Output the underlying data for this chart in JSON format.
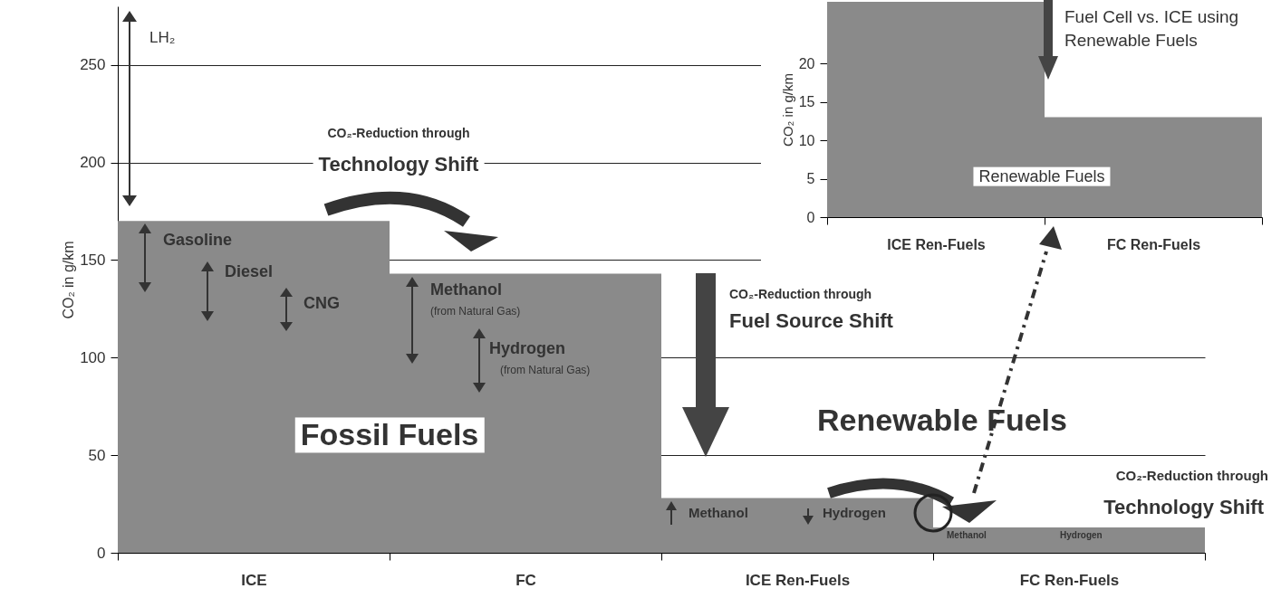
{
  "chart_data": [
    {
      "type": "bar",
      "categories": [
        "ICE",
        "FC",
        "ICE Ren-Fuels",
        "FC Ren-Fuels"
      ],
      "values": [
        170,
        143,
        28,
        13
      ],
      "color": "#8a8a8a",
      "ylabel": "CO₂ in g/km",
      "ylim": [
        0,
        280
      ],
      "yticks": [
        0,
        50,
        100,
        150,
        200,
        250
      ],
      "grid": "y",
      "annotations": [
        "LH₂",
        "Gasoline",
        "Diesel",
        "CNG",
        "Methanol",
        "(from Natural Gas)",
        "Hydrogen",
        "(from Natural Gas)",
        "CO₂-Reduction through",
        "Technology Shift",
        "CO₂-Reduction through",
        "Fuel Source Shift",
        "Fossil Fuels",
        "Renewable Fuels",
        "CO₂-Reduction through",
        "Technology Shift",
        "Methanol",
        "Hydrogen",
        "Methanol",
        "Hydrogen"
      ]
    },
    {
      "type": "bar",
      "categories": [
        "ICE Ren-Fuels",
        "FC Ren-Fuels"
      ],
      "values": [
        28,
        13
      ],
      "color": "#8a8a8a",
      "ylabel": "CO₂ in g/km",
      "ylim": [
        0,
        28
      ],
      "yticks": [
        0,
        5,
        10,
        15,
        20
      ],
      "annotations": [
        "Fuel Cell vs. ICE using Renewable Fuels",
        "Renewable Fuels"
      ]
    }
  ]
}
